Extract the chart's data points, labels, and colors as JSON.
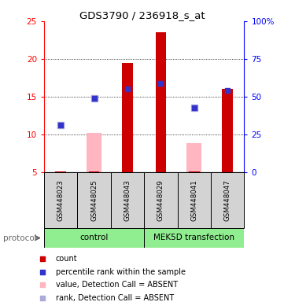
{
  "title": "GDS3790 / 236918_s_at",
  "samples": [
    "GSM448023",
    "GSM448025",
    "GSM448043",
    "GSM448029",
    "GSM448041",
    "GSM448047"
  ],
  "ylim_left": [
    5,
    25
  ],
  "ylim_right": [
    0,
    100
  ],
  "yticks_left": [
    5,
    10,
    15,
    20,
    25
  ],
  "yticks_right": [
    0,
    25,
    50,
    75,
    100
  ],
  "red_bars": [
    5.1,
    5.1,
    19.5,
    23.5,
    5.1,
    16.0
  ],
  "blue_squares": [
    11.2,
    14.8,
    16.0,
    16.8,
    13.5,
    15.8
  ],
  "pink_bars": [
    null,
    10.2,
    null,
    null,
    8.8,
    null
  ],
  "light_blue_squares": [
    11.2,
    14.8,
    null,
    null,
    13.5,
    null
  ],
  "bar_bottom": 5,
  "bar_color": "#CC0000",
  "blue_sq_color": "#3333CC",
  "pink_bar_color": "#FFB6C1",
  "light_blue_sq_color": "#AAAADD",
  "legend_items": [
    {
      "color": "#CC0000",
      "label": "count"
    },
    {
      "color": "#3333CC",
      "label": "percentile rank within the sample"
    },
    {
      "color": "#FFB6C1",
      "label": "value, Detection Call = ABSENT"
    },
    {
      "color": "#AAAADD",
      "label": "rank, Detection Call = ABSENT"
    }
  ]
}
